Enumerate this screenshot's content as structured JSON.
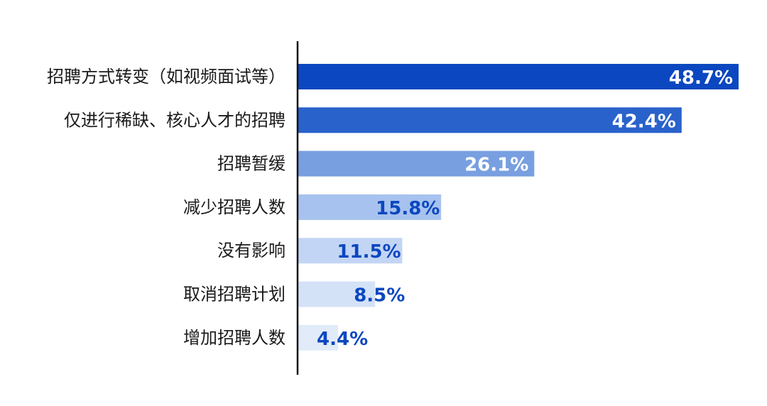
{
  "chart_data": {
    "type": "bar",
    "orientation": "horizontal",
    "categories": [
      "招聘方式转变（如视频面试等）",
      "仅进行稀缺、核心人才的招聘",
      "招聘暂缓",
      "减少招聘人数",
      "没有影响",
      "取消招聘计划",
      "增加招聘人数"
    ],
    "values": [
      48.7,
      42.4,
      26.1,
      15.8,
      11.5,
      8.5,
      4.4
    ],
    "value_labels": [
      "48.7%",
      "42.4%",
      "26.1%",
      "15.8%",
      "11.5%",
      "8.5%",
      "4.4%"
    ],
    "bar_colors": [
      "#0b47c0",
      "#2a62cc",
      "#789fe0",
      "#a7c2ee",
      "#c3d5f4",
      "#d4e2f7",
      "#e1ebf9"
    ],
    "value_label_colors": [
      "#ffffff",
      "#ffffff",
      "#ffffff",
      "#0b47c0",
      "#0b47c0",
      "#0b47c0",
      "#0b47c0"
    ],
    "xlim": [
      0,
      48.7
    ],
    "title": "",
    "xlabel": "",
    "ylabel": "",
    "grid": false,
    "legend": "none"
  }
}
